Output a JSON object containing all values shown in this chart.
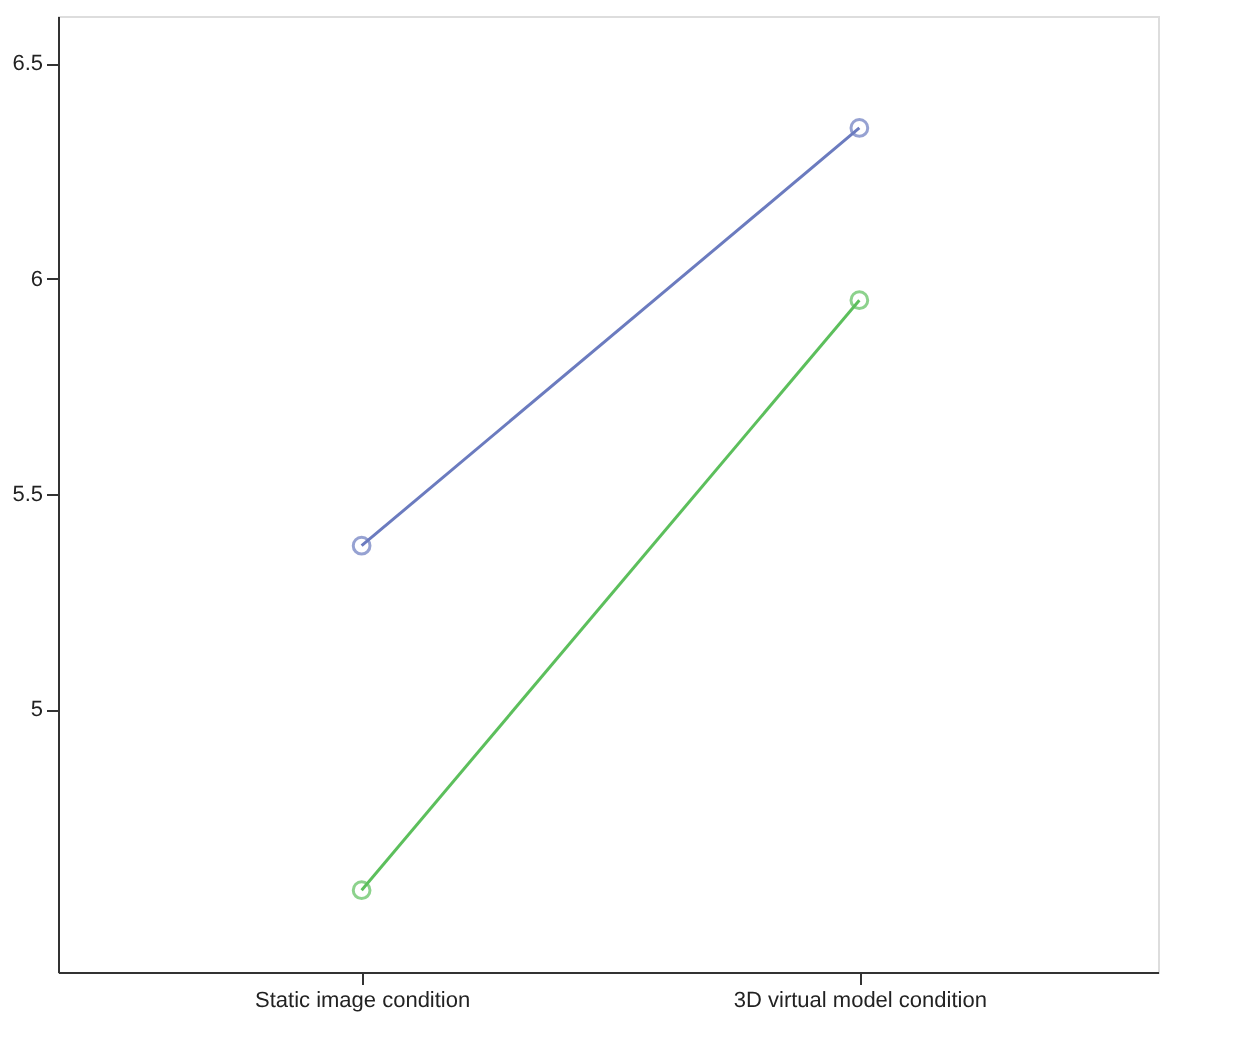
{
  "chart_data": {
    "type": "line",
    "categories": [
      "Static image condition",
      "3D virtual model condition"
    ],
    "series": [
      {
        "color": "#6b7bbf",
        "values": [
          5.38,
          6.35
        ]
      },
      {
        "color": "#5cbf5c",
        "values": [
          4.58,
          5.95
        ]
      }
    ],
    "ylim": [
      4.39,
      6.61
    ],
    "yticks": [
      5,
      5.5,
      6,
      6.5
    ],
    "grid": false,
    "legend": false,
    "marker": "circle",
    "line_style": "solid"
  }
}
